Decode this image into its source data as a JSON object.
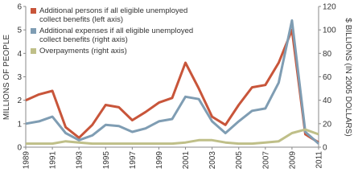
{
  "chart_data": {
    "type": "line",
    "ylabel": "MILLIONS OF PEOPLE",
    "y2label": "$ BILLIONS (IN 2005 DOLLARS)",
    "x": [
      1989,
      1990,
      1991,
      1992,
      1993,
      1994,
      1995,
      1996,
      1997,
      1998,
      1999,
      2000,
      2001,
      2002,
      2003,
      2004,
      2005,
      2006,
      2007,
      2008,
      2009,
      2010,
      2011
    ],
    "xlim": [
      1989,
      2011
    ],
    "xticks": [
      1989,
      1991,
      1993,
      1995,
      1997,
      1999,
      2001,
      2003,
      2005,
      2007,
      2009,
      2011
    ],
    "ylim": [
      0,
      6
    ],
    "yticks": [
      0,
      1,
      2,
      3,
      4,
      5,
      6
    ],
    "y2lim": [
      0,
      120
    ],
    "y2ticks": [
      0,
      20,
      40,
      60,
      80,
      100,
      120
    ],
    "legend": "top-left",
    "series": [
      {
        "name": "Additional persons if all eligible unemployed collect benefits (left axis)",
        "color": "#c8553a",
        "axis": "y",
        "values": [
          2.0,
          2.25,
          2.4,
          0.85,
          0.4,
          0.95,
          1.8,
          1.7,
          1.15,
          1.5,
          1.9,
          2.1,
          3.6,
          2.5,
          1.3,
          0.95,
          1.8,
          2.55,
          2.65,
          3.6,
          5.0,
          0.55,
          0.2
        ]
      },
      {
        "name": "Additional expenses if all eligible unemployed collect benefits (right axis)",
        "color": "#7f9db3",
        "axis": "y2",
        "values": [
          20,
          22,
          26,
          12,
          6,
          10,
          19,
          18,
          13,
          16,
          22,
          24,
          43,
          41,
          22,
          12,
          22,
          31,
          33,
          55,
          108,
          13,
          3
        ]
      },
      {
        "name": "Overpayments (right axis)",
        "color": "#bfbf88",
        "axis": "y2",
        "values": [
          3,
          3,
          3,
          5,
          4,
          3,
          3,
          3,
          3,
          3,
          3,
          3,
          4,
          6,
          6,
          4,
          3,
          3,
          4,
          5,
          12,
          15,
          11
        ]
      }
    ]
  }
}
